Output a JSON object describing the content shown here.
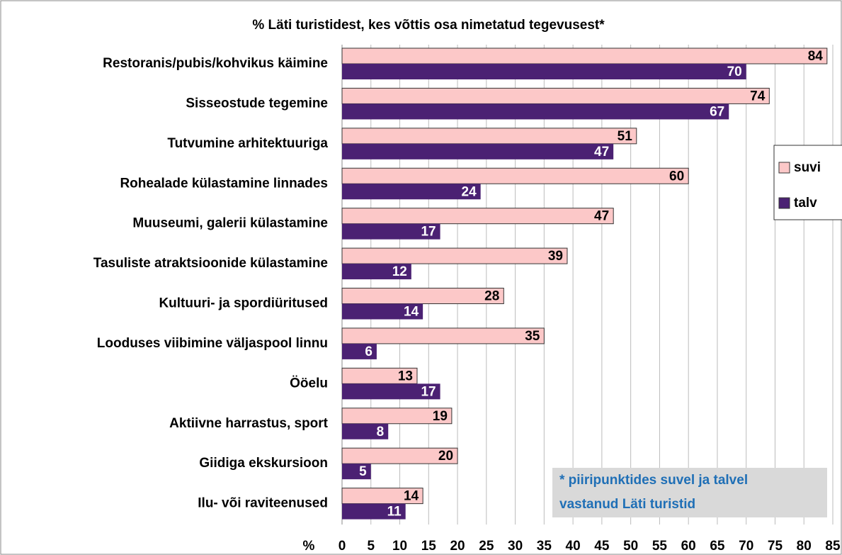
{
  "chart_data": {
    "type": "hbar",
    "title": "% Läti turistidest, kes võttis osa nimetatud tegevusest*",
    "xlabel": "%",
    "categories": [
      "Restoranis/pubis/kohvikus käimine",
      "Sisseostude tegemine",
      "Tutvumine arhitektuuriga ",
      "Rohealade külastamine linnades",
      "Muuseumi, galerii külastamine",
      "Tasuliste atraktsioonide külastamine",
      "Kultuuri- ja spordiüritused",
      "Looduses viibimine väljaspool linnu",
      "Ööelu",
      "Aktiivne harrastus, sport",
      "Giidiga ekskursioon",
      "Ilu- või raviteenused"
    ],
    "series": [
      {
        "name": "suvi",
        "color": "#fcc8c8",
        "values": [
          84,
          74,
          51,
          60,
          47,
          39,
          28,
          35,
          13,
          19,
          20,
          14
        ]
      },
      {
        "name": "talv",
        "color": "#4b2173",
        "values": [
          70,
          67,
          47,
          24,
          17,
          12,
          14,
          6,
          17,
          8,
          5,
          11
        ]
      }
    ],
    "xlim": [
      0,
      85
    ],
    "xticks": [
      0,
      5,
      10,
      15,
      20,
      25,
      30,
      35,
      40,
      45,
      50,
      55,
      60,
      65,
      70,
      75,
      80,
      85
    ],
    "grid": true,
    "legend": "right",
    "annotation": [
      "* piiripunktides suvel ja talvel",
      "vastanud Läti turistid"
    ]
  }
}
